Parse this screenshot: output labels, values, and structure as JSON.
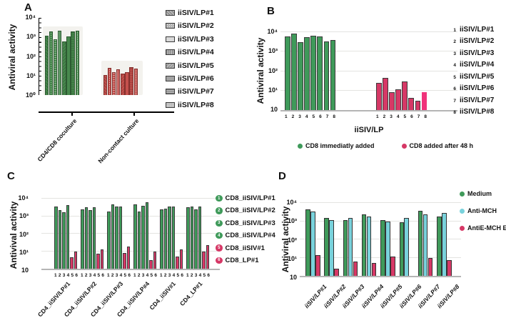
{
  "figure_title": "Antiviral activity bar chart figure, panels A-D",
  "chart_data": [
    {
      "id": "A",
      "type": "bar",
      "log_scale": true,
      "ylim": [
        1,
        10000
      ],
      "ylabel": "Antiviral activity",
      "yticks": [
        "10⁴",
        "10³",
        "10²",
        "10¹",
        "10⁰"
      ],
      "categories": [
        "CD4/CD8 coculture",
        "Non-contact culture"
      ],
      "series": [
        {
          "name": "CD4/CD8 coculture",
          "color": "#47894d",
          "values": [
            1200,
            2000,
            800,
            2200,
            600,
            1100,
            2000,
            2100
          ]
        },
        {
          "name": "Non-contact culture",
          "color": "#c4504c",
          "values": [
            11,
            25,
            15,
            22,
            13,
            16,
            28,
            23
          ]
        }
      ],
      "legend": [
        "iiSIV/LP#1",
        "iiSIV/LP#2",
        "iiSIV/LP#3",
        "iiSIV/LP#4",
        "iiSIV/LP#5",
        "iiSIV/LP#6",
        "iiSIV/LP#7",
        "iiSIV/LP#8"
      ],
      "legend_style": "hatched gray swatches"
    },
    {
      "id": "B",
      "type": "bar",
      "log_scale": true,
      "ylim": [
        1,
        10000
      ],
      "ylabel": "Antiviral activity",
      "yticks": [
        "10⁴",
        "10³",
        "10²",
        "10¹",
        "10"
      ],
      "xlabel": "iiSIV/LP",
      "x": [
        "1",
        "2",
        "3",
        "4",
        "5",
        "6",
        "7",
        "8"
      ],
      "series": [
        {
          "name": "CD8 immediatly added",
          "color": "#3f9a5a",
          "values": [
            5500,
            7500,
            2800,
            5000,
            6200,
            5500,
            3000,
            3800
          ]
        },
        {
          "name": "CD8 added after 48 h",
          "color": "#d63866",
          "values": [
            25,
            45,
            8,
            11,
            28,
            4,
            3,
            8
          ]
        }
      ],
      "side_list": [
        {
          "num": "1",
          "label": "iiSIV/LP#1"
        },
        {
          "num": "2",
          "label": "iiSIV/LP#2"
        },
        {
          "num": "3",
          "label": "iiSIV/LP#3"
        },
        {
          "num": "4",
          "label": "iiSIV/LP#4"
        },
        {
          "num": "5",
          "label": "iiSIV/LP#5"
        },
        {
          "num": "6",
          "label": "iiSIV/LP#6"
        },
        {
          "num": "7",
          "label": "iiSIV/LP#7"
        },
        {
          "num": "8",
          "label": "iiSIV/LP#8"
        }
      ]
    },
    {
      "id": "C",
      "type": "bar",
      "log_scale": true,
      "ylim": [
        1,
        10000
      ],
      "ylabel": "Antivival activity",
      "yticks": [
        "10⁴",
        "10³",
        "10²",
        "10¹",
        "10"
      ],
      "categories": [
        "CD4_iiSIV/LP#1",
        "CD4_iiSIV/LP#2",
        "CD4_iiSIV/LP#3",
        "CD4_iiSIV/LP#4",
        "CD4_iiSIV#1",
        "CD4_LP#1"
      ],
      "bar_numbers": [
        "1",
        "2",
        "3",
        "4",
        "5",
        "6"
      ],
      "groups": [
        [
          3200,
          2000,
          1500,
          4000,
          4.5,
          9.5
        ],
        [
          2300,
          3100,
          2100,
          3100,
          7,
          12
        ],
        [
          1700,
          4200,
          3300,
          3300,
          8,
          18
        ],
        [
          4300,
          1700,
          3500,
          5500,
          3,
          9
        ],
        [
          2200,
          2500,
          3200,
          3400,
          5,
          12
        ],
        [
          2900,
          3400,
          2300,
          3400,
          9,
          22
        ]
      ],
      "legend": [
        {
          "num": "1",
          "label": "CD8_iiSIV/LP#1",
          "color": "#3f9a5a"
        },
        {
          "num": "2",
          "label": "CD8_iiSIV/LP#2",
          "color": "#3f9a5a"
        },
        {
          "num": "3",
          "label": "CD8_iiSIV/LP#3",
          "color": "#3f9a5a"
        },
        {
          "num": "4",
          "label": "CD8_iiSIV/LP#4",
          "color": "#3f9a5a"
        },
        {
          "num": "5",
          "label": "CD8_iiSIV#1",
          "color": "#d63866"
        },
        {
          "num": "6",
          "label": "CD8_LP#1",
          "color": "#d63866"
        }
      ]
    },
    {
      "id": "D",
      "type": "bar",
      "log_scale": true,
      "ylim": [
        1,
        10000
      ],
      "ylabel": "Antiviral activity",
      "yticks": [
        "10⁴",
        "10³",
        "10²",
        "10¹",
        "10"
      ],
      "categories": [
        "iiSIV/LP#1",
        "iiSIV/LP#2",
        "iiSIV/LP#3",
        "iiSIV/LP#4",
        "iiSIV/LP#5",
        "iiSIV/LP#6",
        "iiSIV/LP#7",
        "iiSIV/LP#8"
      ],
      "series": [
        {
          "name": "Medium",
          "color": "#3f9a5a",
          "values": [
            4000,
            1400,
            1100,
            2100,
            1100,
            800,
            3300,
            1700
          ]
        },
        {
          "name": "Anti-MCH",
          "color": "#79d2dc",
          "values": [
            3200,
            1100,
            1400,
            1700,
            900,
            1400,
            2100,
            2700
          ]
        },
        {
          "name": "AntiE-MCH E",
          "color": "#d63866",
          "values": [
            13,
            2.5,
            6,
            5,
            11,
            null,
            9,
            7
          ]
        }
      ]
    }
  ]
}
